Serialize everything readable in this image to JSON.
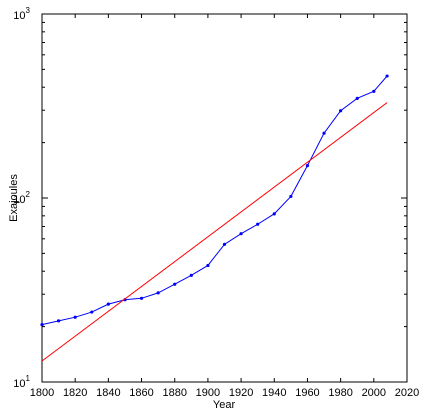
{
  "chart_data": {
    "type": "line",
    "title": "",
    "xlabel": "Year",
    "ylabel": "Exajoules",
    "xlim": [
      1800,
      2020
    ],
    "ylim": [
      10,
      1000
    ],
    "yscale": "log",
    "grid": false,
    "x_ticks": [
      1800,
      1820,
      1840,
      1860,
      1880,
      1900,
      1920,
      1940,
      1960,
      1980,
      2000,
      2020
    ],
    "y_ticks": [
      {
        "value": 10,
        "base": "10",
        "exp": "1"
      },
      {
        "value": 100,
        "base": "10",
        "exp": "2"
      },
      {
        "value": 1000,
        "base": "10",
        "exp": "3"
      }
    ],
    "series": [
      {
        "style": "line-with-points",
        "color": "#0000ff",
        "x": [
          1800,
          1810,
          1820,
          1830,
          1840,
          1850,
          1860,
          1870,
          1880,
          1890,
          1900,
          1910,
          1920,
          1930,
          1940,
          1950,
          1960,
          1970,
          1980,
          1990,
          2000,
          2008
        ],
        "y": [
          20.5,
          21.5,
          22.5,
          24,
          26.5,
          28,
          28.5,
          30.5,
          34,
          38,
          43,
          56,
          64,
          72,
          82,
          102,
          150,
          225,
          298,
          348,
          380,
          460
        ]
      },
      {
        "style": "line",
        "color": "#ff0000",
        "x": [
          1800,
          2008
        ],
        "y": [
          13,
          330
        ]
      }
    ]
  }
}
